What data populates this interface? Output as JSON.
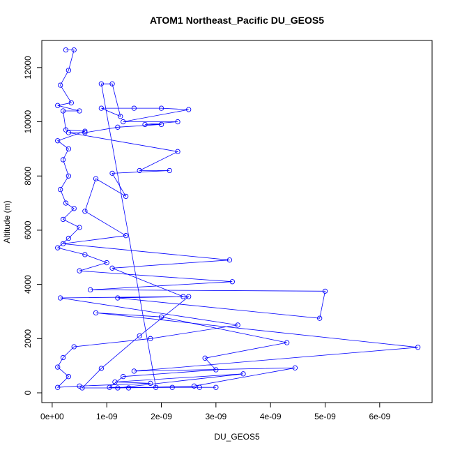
{
  "chart_data": {
    "type": "line",
    "markers": "open-circle",
    "color": "#0000ff",
    "title": "ATOM1 Northeast_Pacific DU_GEOS5",
    "x_label": "DU_GEOS5",
    "y_label": "Altitude (m)",
    "xlim": [
      -1.9e-10,
      6.96e-09
    ],
    "ylim": [
      -360,
      13000
    ],
    "xticks": [
      {
        "value": 0,
        "label": "0e+00"
      },
      {
        "value": 1e-09,
        "label": "1e-09"
      },
      {
        "value": 2e-09,
        "label": "2e-09"
      },
      {
        "value": 3e-09,
        "label": "3e-09"
      },
      {
        "value": 4e-09,
        "label": "4e-09"
      },
      {
        "value": 5e-09,
        "label": "5e-09"
      },
      {
        "value": 6e-09,
        "label": "6e-09"
      }
    ],
    "yticks": [
      0,
      2000,
      4000,
      6000,
      8000,
      10000,
      12000
    ],
    "x": [
      2.5e-10,
      4e-10,
      3e-10,
      1.5e-10,
      3.5e-10,
      1e-10,
      5e-10,
      2e-10,
      2.5e-10,
      6e-10,
      1e-10,
      3e-10,
      2e-10,
      3e-10,
      1.5e-10,
      2.5e-10,
      4e-10,
      2e-10,
      5e-10,
      3e-10,
      1e-10,
      6e-10,
      1e-09,
      5e-10,
      3.3e-09,
      7e-10,
      5e-09,
      4.9e-09,
      1.2e-09,
      2.5e-09,
      1.6e-09,
      9e-10,
      5.5e-10,
      1.4e-09,
      2.6e-09,
      4.45e-09,
      1.5e-09,
      6.7e-09,
      8e-10,
      2e-09,
      4.3e-09,
      2.8e-09,
      3e-09,
      1.3e-09,
      1.05e-09,
      1.9e-09,
      9e-10,
      1.1e-09,
      1.25e-09,
      9e-10,
      1.5e-09,
      2e-09,
      2.5e-09,
      1.3e-09,
      2.3e-09,
      1.7e-09,
      2e-09,
      1.2e-09,
      6e-10,
      3e-10,
      2.3e-09,
      1.6e-09,
      2.15e-09,
      1.1e-09,
      1.35e-09,
      8e-10,
      6e-10,
      1.35e-09,
      2e-10,
      3.25e-09,
      1.1e-09,
      2.4e-09,
      1.5e-10,
      3.4e-09,
      1.8e-09,
      4e-10,
      2e-10,
      1e-10,
      3e-10,
      1e-10,
      5e-10,
      1.8e-09,
      1.15e-09,
      3.5e-09,
      1.2e-09,
      2.2e-09,
      3e-09,
      2.7e-09
    ],
    "values": [
      12650,
      12650,
      11900,
      11350,
      10700,
      10600,
      10400,
      10400,
      9700,
      9650,
      9300,
      9000,
      8600,
      8000,
      7500,
      7000,
      6800,
      6400,
      6100,
      5700,
      5350,
      5100,
      4800,
      4500,
      4100,
      3800,
      3750,
      2750,
      3500,
      3550,
      2100,
      900,
      180,
      180,
      250,
      920,
      800,
      1680,
      2950,
      2800,
      1850,
      1280,
      850,
      600,
      200,
      200,
      11400,
      11400,
      10200,
      10500,
      10500,
      10500,
      10450,
      10000,
      10000,
      9900,
      9900,
      9800,
      9600,
      9600,
      8900,
      8200,
      8200,
      8100,
      7250,
      7900,
      6700,
      5800,
      5500,
      4900,
      4600,
      3550,
      3500,
      2500,
      2000,
      1700,
      1300,
      950,
      600,
      200,
      250,
      350,
      400,
      700,
      180,
      200,
      200,
      200
    ]
  }
}
